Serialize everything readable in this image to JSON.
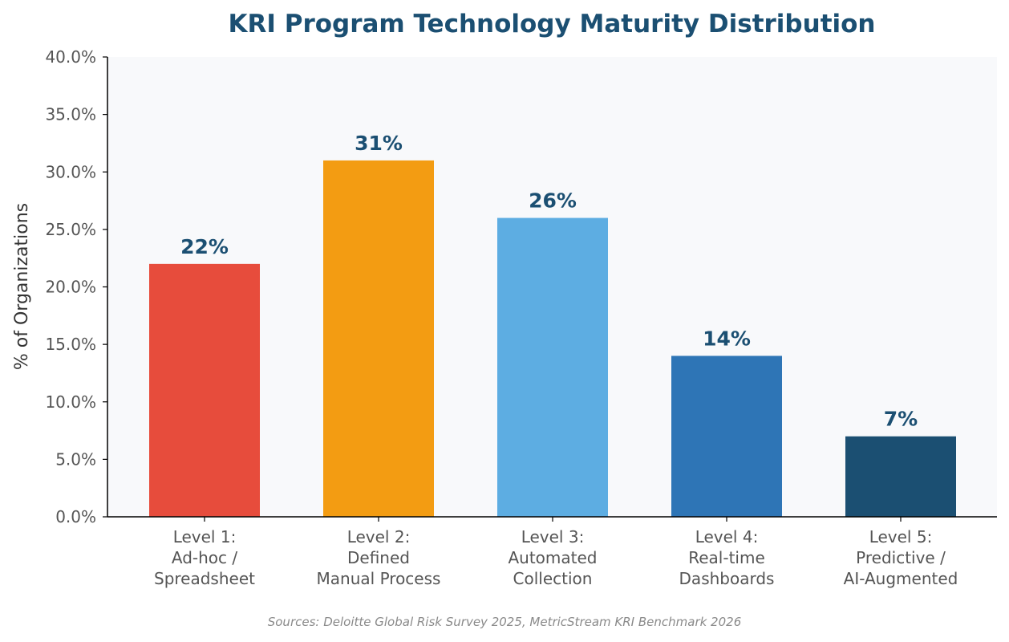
{
  "chart_data": {
    "type": "bar",
    "title": "KRI Program Technology Maturity Distribution",
    "ylabel": "% of Organizations",
    "xlabel": "",
    "categories": [
      [
        "Level 1:",
        "Ad-hoc /",
        "Spreadsheet"
      ],
      [
        "Level 2:",
        "Defined",
        "Manual Process"
      ],
      [
        "Level 3:",
        "Automated",
        "Collection"
      ],
      [
        "Level 4:",
        "Real-time",
        "Dashboards"
      ],
      [
        "Level 5:",
        "Predictive /",
        "AI-Augmented"
      ]
    ],
    "values": [
      22,
      31,
      26,
      14,
      7
    ],
    "value_labels": [
      "22%",
      "31%",
      "26%",
      "14%",
      "7%"
    ],
    "colors": [
      "#e74c3c",
      "#f39c12",
      "#5dade2",
      "#2e75b6",
      "#1b4f72"
    ],
    "ylim": [
      0,
      40
    ],
    "yticks": [
      0,
      5,
      10,
      15,
      20,
      25,
      30,
      35,
      40
    ],
    "ytick_labels": [
      "0.0%",
      "5.0%",
      "10.0%",
      "15.0%",
      "20.0%",
      "25.0%",
      "30.0%",
      "35.0%",
      "40.0%"
    ],
    "grid": false,
    "plot_background": "#f8f9fb",
    "source": "Sources: Deloitte Global Risk Survey 2025, MetricStream KRI Benchmark 2026"
  }
}
